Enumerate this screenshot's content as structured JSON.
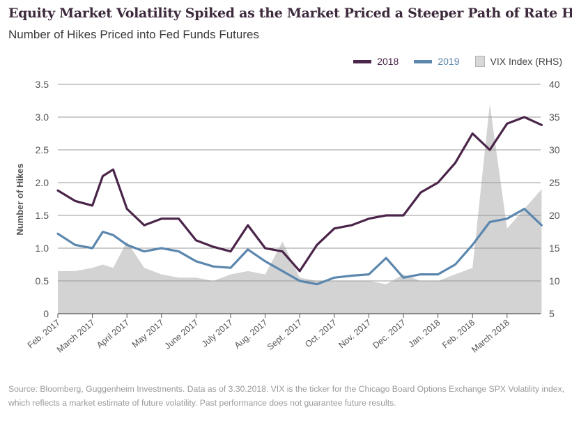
{
  "header": {
    "title": "Equity Market Volatility Spiked as the Market Priced a Steeper Path of Rate Hikes",
    "subtitle": "Number of Hikes Priced into Fed Funds Futures"
  },
  "legend": {
    "items": [
      {
        "label": "2018",
        "color": "#4a2449",
        "kind": "line"
      },
      {
        "label": "2019",
        "color": "#5b87ae",
        "kind": "line"
      },
      {
        "label": "VIX Index (RHS)",
        "color": "#d3d3d3",
        "kind": "area"
      }
    ]
  },
  "footnote": "Source: Bloomberg, Guggenheim Investments. Data as of 3.30.2018. VIX is the ticker for the Chicago Board Options Exchange SPX Volatility index, which reflects a market estimate of future volatility. Past performance does not guarantee future results.",
  "chart_data": {
    "type": "line",
    "title": "Equity Market Volatility Spiked as the Market Priced a Steeper Path of Rate Hikes",
    "subtitle": "Number of Hikes Priced into Fed Funds Futures",
    "xlabel": "",
    "ylabel": "Number of Hikes",
    "y2label": "VIX Index (RHS)",
    "ylim": [
      0,
      3.5
    ],
    "y2lim": [
      5,
      40
    ],
    "yticks": [
      "0",
      "0.5",
      "1.0",
      "1.5",
      "2.0",
      "2.5",
      "3.0",
      "3.5"
    ],
    "y2ticks": [
      "5",
      "10",
      "15",
      "20",
      "25",
      "30",
      "35",
      "40"
    ],
    "grid": true,
    "legend_position": "top-right",
    "x_tick_labels": [
      "Feb. 2017",
      "March 2017",
      "April 2017",
      "May 2017",
      "June 2017",
      "July 2017",
      "Aug. 2017",
      "Sept. 2017",
      "Oct. 2017",
      "Nov. 2017",
      "Dec. 2017",
      "Jan. 2018",
      "Feb. 2018",
      "March 2018"
    ],
    "x_months": [
      0,
      1,
      2,
      3,
      4,
      5,
      6,
      7,
      8,
      9,
      10,
      11,
      12,
      13,
      14
    ],
    "x": [
      0,
      0.5,
      1,
      1.3,
      1.6,
      2,
      2.5,
      3,
      3.5,
      4,
      4.5,
      5,
      5.5,
      6,
      6.5,
      7,
      7.5,
      8,
      8.5,
      9,
      9.5,
      10,
      10.5,
      11,
      11.5,
      12,
      12.5,
      13,
      13.5,
      14
    ],
    "series": [
      {
        "name": "2018",
        "axis": "left",
        "color": "#4a2449",
        "values": [
          1.88,
          1.72,
          1.65,
          2.1,
          2.2,
          1.6,
          1.35,
          1.45,
          1.45,
          1.12,
          1.02,
          0.95,
          1.35,
          1.0,
          0.95,
          0.65,
          1.05,
          1.3,
          1.35,
          1.45,
          1.5,
          1.5,
          1.85,
          2.0,
          2.3,
          2.75,
          2.5,
          2.9,
          3.0,
          2.88
        ]
      },
      {
        "name": "2019",
        "axis": "left",
        "color": "#5b87ae",
        "values": [
          1.22,
          1.05,
          1.0,
          1.25,
          1.2,
          1.05,
          0.95,
          1.0,
          0.95,
          0.8,
          0.72,
          0.7,
          0.98,
          0.8,
          0.65,
          0.5,
          0.45,
          0.55,
          0.58,
          0.6,
          0.85,
          0.55,
          0.6,
          0.6,
          0.75,
          1.05,
          1.4,
          1.45,
          1.6,
          1.35
        ]
      },
      {
        "name": "VIX Index (RHS)",
        "axis": "right",
        "color": "#d3d3d3",
        "type": "area",
        "values": [
          11.5,
          11.5,
          12,
          12.5,
          12,
          16,
          12,
          11,
          10.5,
          10.5,
          10,
          11,
          11.5,
          11,
          16,
          10.5,
          10,
          10,
          10,
          10,
          9.5,
          11,
          10,
          10,
          11,
          12,
          37,
          18,
          21,
          24
        ]
      }
    ]
  }
}
